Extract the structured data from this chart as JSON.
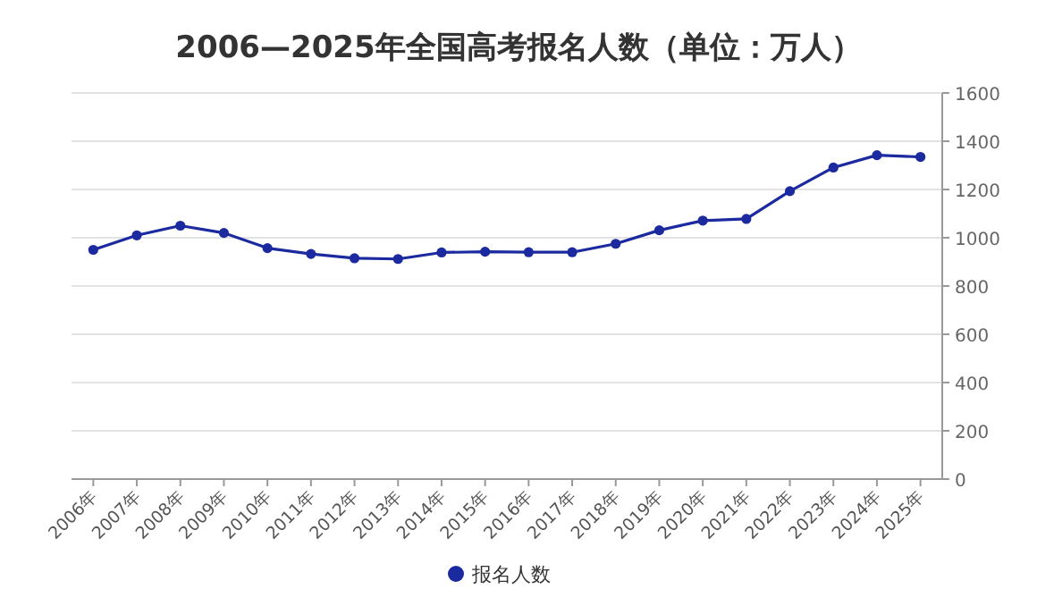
{
  "chart_data": {
    "type": "line",
    "title": "2006—2025年全国高考报名人数（单位：万人）",
    "categories": [
      "2006年",
      "2007年",
      "2008年",
      "2009年",
      "2010年",
      "2011年",
      "2012年",
      "2013年",
      "2014年",
      "2015年",
      "2016年",
      "2017年",
      "2018年",
      "2019年",
      "2020年",
      "2021年",
      "2022年",
      "2023年",
      "2024年",
      "2025年"
    ],
    "series": [
      {
        "name": "报名人数",
        "color": "#1c2aa0",
        "values": [
          950,
          1010,
          1050,
          1020,
          957,
          933,
          915,
          912,
          939,
          942,
          940,
          940,
          975,
          1031,
          1071,
          1078,
          1193,
          1291,
          1342,
          1335
        ]
      }
    ],
    "ylim": [
      0,
      1600
    ],
    "yticks": [
      0,
      200,
      400,
      600,
      800,
      1000,
      1200,
      1400,
      1600
    ],
    "grid": "y",
    "legend": "bottom",
    "marker": "circle"
  }
}
